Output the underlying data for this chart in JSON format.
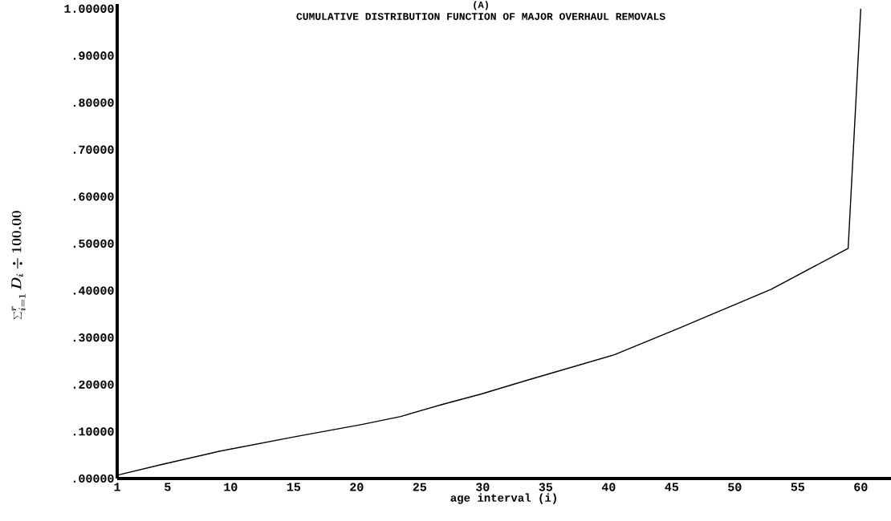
{
  "chart_data": {
    "type": "line",
    "title": "CUMULATIVE DISTRIBUTION FUNCTION OF MAJOR OVERHAUL REMOVALS",
    "annotations": [
      "(A)"
    ],
    "xlabel": "age interval (i)",
    "ylabel": "\\sum_{i=1}^{r} D_i \\div 100.00",
    "x": [
      1,
      4.4,
      9.1,
      15.1,
      20.4,
      23.5,
      26.7,
      29.9,
      33.5,
      40.4,
      45.4,
      52.9,
      59,
      60
    ],
    "values": [
      0.007,
      0.029,
      0.058,
      0.089,
      0.115,
      0.132,
      0.157,
      0.18,
      0.209,
      0.263,
      0.318,
      0.403,
      0.49,
      1.0
    ],
    "color": "#000000",
    "xlim": [
      1,
      62.4
    ],
    "ylim": [
      0,
      1.01
    ],
    "xticks": [
      1,
      5,
      10,
      15,
      20,
      25,
      30,
      35,
      40,
      45,
      50,
      55,
      60
    ],
    "yticks": [
      {
        "value": 0,
        "label": ".00000"
      },
      {
        "value": 0.1,
        "label": ".10000"
      },
      {
        "value": 0.2,
        "label": ".20000"
      },
      {
        "value": 0.3,
        "label": ".30000"
      },
      {
        "value": 0.4,
        "label": ".40000"
      },
      {
        "value": 0.5,
        "label": ".50000"
      },
      {
        "value": 0.6,
        "label": ".60000"
      },
      {
        "value": 0.7,
        "label": ".70000"
      },
      {
        "value": 0.8,
        "label": ".80000"
      },
      {
        "value": 0.9,
        "label": ".90000"
      },
      {
        "value": 1.0,
        "label": "1.00000"
      }
    ],
    "grid": false,
    "marker": "none",
    "line_style": "solid"
  }
}
